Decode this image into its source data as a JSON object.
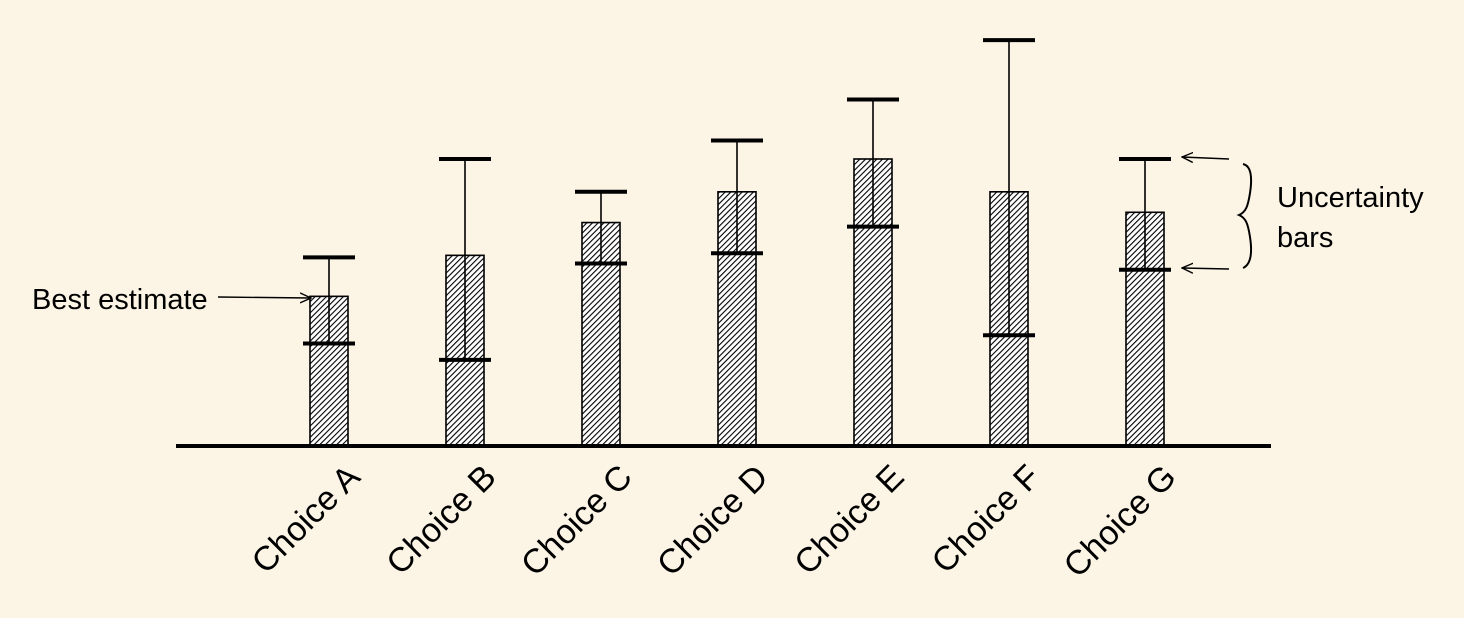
{
  "chart_data": {
    "type": "bar",
    "title": "",
    "xlabel": "",
    "ylabel": "",
    "categories": [
      "Choice A",
      "Choice B",
      "Choice C",
      "Choice D",
      "Choice E",
      "Choice F",
      "Choice G"
    ],
    "values": [
      3.65,
      4.65,
      5.45,
      6.2,
      7.0,
      6.2,
      5.7
    ],
    "error_low": [
      2.5,
      2.1,
      4.45,
      4.7,
      5.35,
      2.7,
      4.3
    ],
    "error_high": [
      4.6,
      7.0,
      6.2,
      7.45,
      8.45,
      9.9,
      7.0
    ],
    "ylim": [
      0,
      10
    ],
    "grid": false,
    "bar_fill": "hatched",
    "colors": {
      "background": "#fcf5e6",
      "ink": "#000000"
    }
  },
  "annotations": {
    "best_estimate": "Best estimate",
    "uncertainty_line1": "Uncertainty",
    "uncertainty_line2": "bars"
  }
}
